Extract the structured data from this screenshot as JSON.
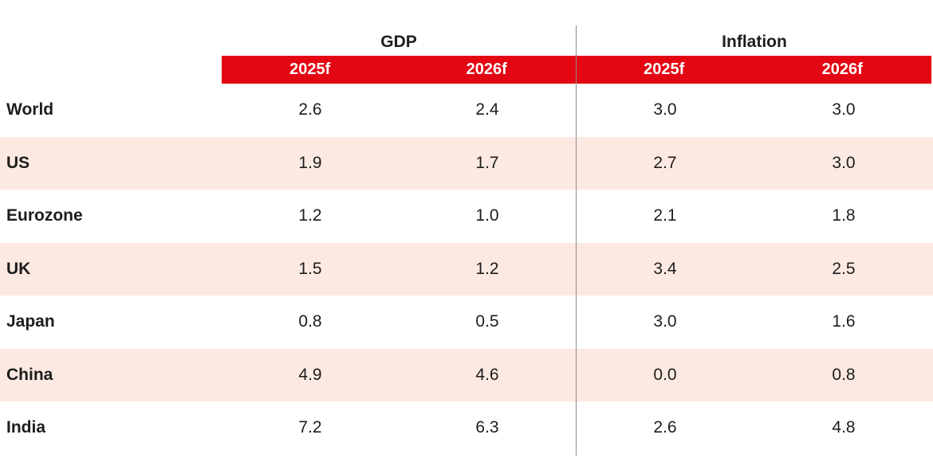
{
  "table": {
    "sections": [
      {
        "title": "GDP",
        "columns": [
          "2025f",
          "2026f"
        ]
      },
      {
        "title": "Inflation",
        "columns": [
          "2025f",
          "2026f"
        ]
      }
    ],
    "rows": [
      {
        "label": "World",
        "values": [
          "2.6",
          "2.4",
          "3.0",
          "3.0"
        ]
      },
      {
        "label": "US",
        "values": [
          "1.9",
          "1.7",
          "2.7",
          "3.0"
        ]
      },
      {
        "label": "Eurozone",
        "values": [
          "1.2",
          "1.0",
          "2.1",
          "1.8"
        ]
      },
      {
        "label": "UK",
        "values": [
          "1.5",
          "1.2",
          "3.4",
          "2.5"
        ]
      },
      {
        "label": "Japan",
        "values": [
          "0.8",
          "0.5",
          "3.0",
          "1.6"
        ]
      },
      {
        "label": "China",
        "values": [
          "4.9",
          "4.6",
          "0.0",
          "0.8"
        ]
      },
      {
        "label": "India",
        "values": [
          "7.2",
          "6.3",
          "2.6",
          "4.8"
        ]
      }
    ],
    "colors": {
      "accent_red": "#e30613",
      "row_alt_pink": "#fbe9e2",
      "divider_gray": "#8c8c8c",
      "header_text": "#ffffff",
      "body_text": "#1d1d1b"
    }
  },
  "chart_data": {
    "type": "table",
    "title": "",
    "column_groups": [
      "GDP",
      "Inflation"
    ],
    "columns": [
      "GDP 2025f",
      "GDP 2026f",
      "Inflation 2025f",
      "Inflation 2026f"
    ],
    "categories": [
      "World",
      "US",
      "Eurozone",
      "UK",
      "Japan",
      "China",
      "India"
    ],
    "series": [
      {
        "name": "GDP 2025f",
        "values": [
          2.6,
          1.9,
          1.2,
          1.5,
          0.8,
          4.9,
          7.2
        ]
      },
      {
        "name": "GDP 2026f",
        "values": [
          2.4,
          1.7,
          1.0,
          1.2,
          0.5,
          4.6,
          6.3
        ]
      },
      {
        "name": "Inflation 2025f",
        "values": [
          3.0,
          2.7,
          2.1,
          3.4,
          3.0,
          0.0,
          2.6
        ]
      },
      {
        "name": "Inflation 2026f",
        "values": [
          3.0,
          3.0,
          1.8,
          2.5,
          1.6,
          0.8,
          4.8
        ]
      }
    ],
    "layout": {
      "alternating_row_shading": true,
      "group_divider": "vertical line between GDP and Inflation"
    }
  }
}
